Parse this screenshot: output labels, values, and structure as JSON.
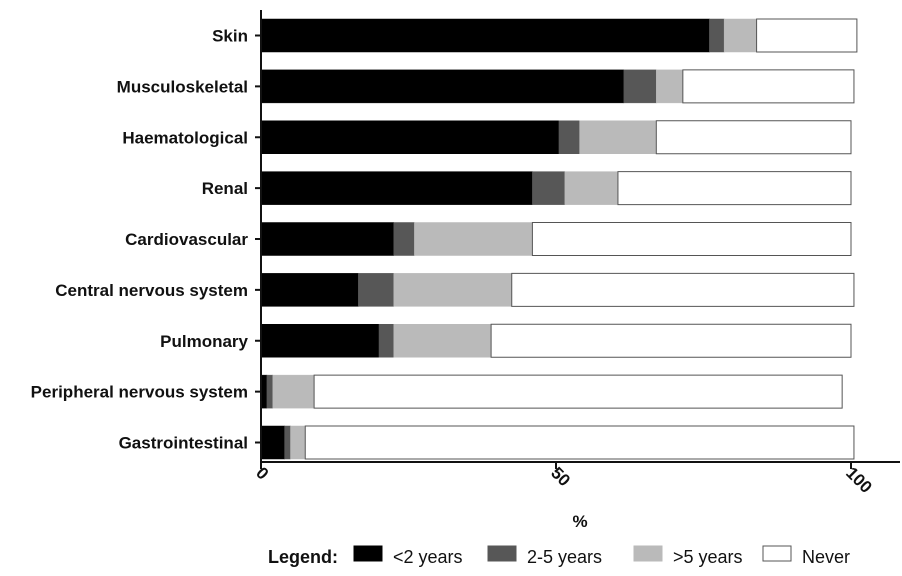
{
  "chart_data": {
    "type": "bar",
    "orientation": "horizontal",
    "stacked": true,
    "categories": [
      "Skin",
      "Musculoskeletal",
      "Haematological",
      "Renal",
      "Cardiovascular",
      "Central nervous system",
      "Pulmonary",
      "Peripheral nervous system",
      "Gastrointestinal"
    ],
    "series": [
      {
        "name": "<2 years",
        "color": "#000000",
        "values": [
          76,
          61.5,
          50.5,
          46,
          22.5,
          16.5,
          20,
          1,
          4
        ]
      },
      {
        "name": "2-5 years",
        "color": "#575757",
        "values": [
          2.5,
          5.5,
          3.5,
          5.5,
          3.5,
          6,
          2.5,
          1,
          1
        ]
      },
      {
        "name": ">5 years",
        "color": "#bababa",
        "values": [
          5.5,
          4.5,
          13,
          9,
          20,
          20,
          16.5,
          7,
          2.5
        ]
      },
      {
        "name": "Never",
        "color": "#ffffff",
        "values": [
          17,
          29,
          33,
          39.5,
          54,
          58,
          61,
          89.5,
          93
        ]
      }
    ],
    "xlabel": "%",
    "ylabel": "",
    "xlim": [
      0,
      100
    ],
    "xticks": [
      "0",
      "50",
      "100"
    ],
    "tick_rotation_deg": 45,
    "legend_title": "Legend:",
    "legend_position": "bottom",
    "grid": false
  }
}
